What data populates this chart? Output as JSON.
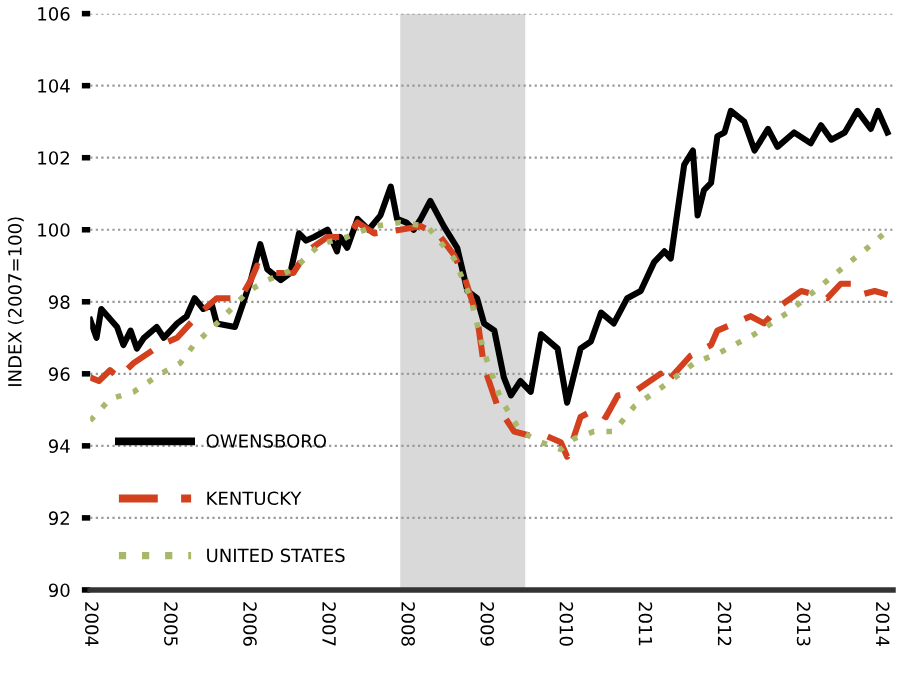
{
  "chart_data": {
    "type": "line",
    "ylabel": "INDEX (2007=100)",
    "xlim": [
      2004,
      2014.15
    ],
    "xticks": [
      2004,
      2005,
      2006,
      2007,
      2008,
      2009,
      2010,
      2011,
      2012,
      2013,
      2014
    ],
    "ylim": [
      90,
      106
    ],
    "yticks": [
      90,
      92,
      94,
      96,
      98,
      100,
      102,
      104,
      106
    ],
    "grid": "y",
    "legend": "bottom left",
    "bands": [
      {
        "axis": "x",
        "from": 2007.92,
        "to": 2009.5,
        "color": "#d9d9d9"
      }
    ],
    "series": [
      {
        "name": "OWENSBORO",
        "color": "#000000",
        "line_style": "solid",
        "x": [
          2004.0,
          2004.08,
          2004.14,
          2004.34,
          2004.42,
          2004.51,
          2004.59,
          2004.68,
          2004.84,
          2004.93,
          2005.1,
          2005.22,
          2005.32,
          2005.43,
          2005.54,
          2005.6,
          2005.83,
          2005.94,
          2006.03,
          2006.15,
          2006.24,
          2006.41,
          2006.53,
          2006.64,
          2006.73,
          2006.83,
          2007.0,
          2007.12,
          2007.16,
          2007.25,
          2007.38,
          2007.52,
          2007.67,
          2007.8,
          2007.88,
          2008.0,
          2008.09,
          2008.18,
          2008.3,
          2008.47,
          2008.64,
          2008.77,
          2008.89,
          2008.98,
          2009.11,
          2009.23,
          2009.32,
          2009.44,
          2009.57,
          2009.7,
          2009.91,
          2010.03,
          2010.2,
          2010.33,
          2010.46,
          2010.62,
          2010.79,
          2010.96,
          2011.13,
          2011.26,
          2011.34,
          2011.51,
          2011.62,
          2011.68,
          2011.76,
          2011.85,
          2011.93,
          2012.02,
          2012.1,
          2012.27,
          2012.4,
          2012.57,
          2012.69,
          2012.9,
          2013.11,
          2013.24,
          2013.37,
          2013.54,
          2013.7,
          2013.87,
          2013.96,
          2014.08
        ],
        "values": [
          97.5,
          97.0,
          97.8,
          97.3,
          96.8,
          97.2,
          96.7,
          97.0,
          97.3,
          97.0,
          97.4,
          97.6,
          98.1,
          97.8,
          97.9,
          97.4,
          97.3,
          98.0,
          98.6,
          99.6,
          98.9,
          98.6,
          98.8,
          99.9,
          99.7,
          99.8,
          100.0,
          99.4,
          99.8,
          99.5,
          100.3,
          100.0,
          100.4,
          101.2,
          100.3,
          100.2,
          100.0,
          100.3,
          100.8,
          100.1,
          99.5,
          98.3,
          98.1,
          97.4,
          97.2,
          95.9,
          95.4,
          95.8,
          95.5,
          97.1,
          96.7,
          95.2,
          96.7,
          96.9,
          97.7,
          97.4,
          98.1,
          98.3,
          99.1,
          99.4,
          99.2,
          101.8,
          102.2,
          100.4,
          101.1,
          101.3,
          102.6,
          102.7,
          103.3,
          103.0,
          102.2,
          102.8,
          102.3,
          102.7,
          102.4,
          102.9,
          102.5,
          102.7,
          103.3,
          102.8,
          103.3,
          102.7
        ]
      },
      {
        "name": "KENTUCKY",
        "color": "#d2401e",
        "line_style": "dashed",
        "x": [
          2004.0,
          2004.11,
          2004.25,
          2004.36,
          2004.55,
          2004.89,
          2005.1,
          2005.39,
          2005.6,
          2005.9,
          2006.03,
          2006.11,
          2006.32,
          2006.57,
          2006.74,
          2007.0,
          2007.25,
          2007.38,
          2007.59,
          2007.92,
          2008.18,
          2008.43,
          2008.6,
          2008.73,
          2008.89,
          2008.98,
          2009.15,
          2009.36,
          2009.53,
          2009.74,
          2009.95,
          2010.03,
          2010.2,
          2010.37,
          2010.52,
          2010.67,
          2010.88,
          2011.21,
          2011.26,
          2011.59,
          2011.85,
          2011.93,
          2012.14,
          2012.35,
          2012.52,
          2012.73,
          2012.99,
          2013.16,
          2013.32,
          2013.49,
          2013.62,
          2013.75,
          2013.92,
          2014.08
        ],
        "values": [
          95.9,
          95.8,
          96.1,
          95.9,
          96.3,
          96.8,
          97.0,
          97.7,
          98.1,
          98.1,
          98.6,
          99.0,
          98.8,
          98.8,
          99.4,
          99.8,
          99.8,
          100.2,
          99.9,
          100.0,
          100.1,
          99.8,
          99.3,
          98.7,
          97.6,
          96.2,
          95.1,
          94.4,
          94.3,
          94.3,
          94.1,
          93.7,
          94.8,
          95.0,
          94.8,
          95.4,
          95.5,
          96.0,
          95.7,
          96.5,
          96.8,
          97.2,
          97.4,
          97.6,
          97.4,
          97.9,
          98.3,
          98.2,
          98.1,
          98.5,
          98.5,
          98.2,
          98.3,
          98.2
        ]
      },
      {
        "name": "UNITED STATES",
        "color": "#a8b86a",
        "line_style": "dotted",
        "x": [
          2004.0,
          2004.25,
          2004.55,
          2004.89,
          2005.14,
          2005.31,
          2005.65,
          2006.0,
          2006.24,
          2006.57,
          2006.91,
          2007.25,
          2007.59,
          2007.92,
          2008.26,
          2008.6,
          2008.81,
          2008.98,
          2009.19,
          2009.44,
          2009.7,
          2009.95,
          2010.12,
          2010.37,
          2010.62,
          2010.88,
          2011.21,
          2011.64,
          2011.97,
          2012.4,
          2012.82,
          2013.16,
          2013.49,
          2013.83,
          2014.04
        ],
        "values": [
          94.7,
          95.3,
          95.5,
          96.0,
          96.3,
          96.8,
          97.5,
          98.3,
          98.6,
          98.9,
          99.6,
          99.8,
          100.1,
          100.2,
          100.1,
          99.2,
          98.1,
          96.6,
          95.3,
          94.4,
          94.1,
          93.9,
          94.2,
          94.4,
          94.4,
          95.1,
          95.6,
          96.3,
          96.6,
          97.1,
          97.7,
          98.3,
          98.9,
          99.5,
          99.9
        ]
      }
    ]
  }
}
